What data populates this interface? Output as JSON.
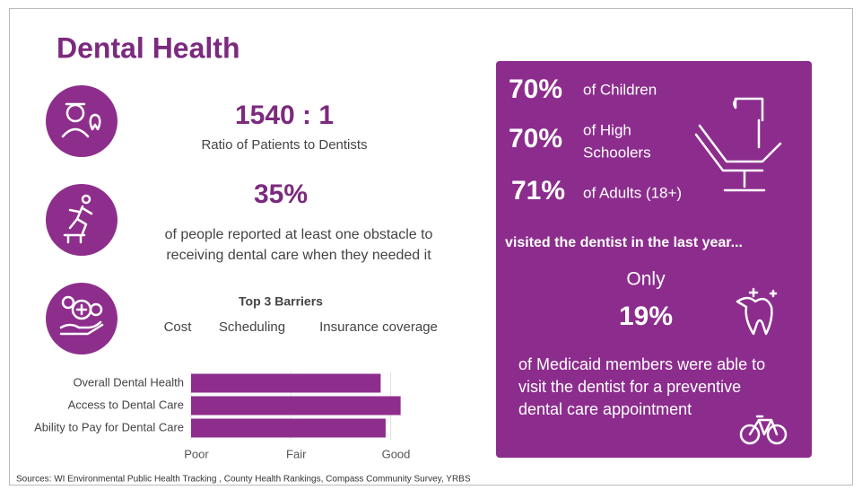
{
  "header": {
    "title": "Dental Health"
  },
  "ratio": {
    "value": "1540 : 1",
    "label": "Ratio of Patients to Dentists"
  },
  "obstacle": {
    "value": "35%",
    "lines": [
      "of people reported at least one obstacle to",
      "receiving dental care when they needed it"
    ]
  },
  "barriers": {
    "title": "Top 3 Barriers",
    "items": [
      "Cost",
      "Scheduling",
      "Insurance coverage"
    ]
  },
  "panel": {
    "visits": [
      {
        "value": "70%",
        "lines": [
          "of Children"
        ]
      },
      {
        "value": "70%",
        "lines": [
          "of High",
          "Schoolers"
        ]
      },
      {
        "value": "71%",
        "lines": [
          "of Adults (18+)"
        ]
      }
    ],
    "visited": "visited the dentist in the last year...",
    "only": "Only",
    "medicaid_value": "19%",
    "medicaid_lines": [
      "of Medicaid members were able to",
      "visit the dentist for a preventive",
      "dental care appointment"
    ]
  },
  "chart_data": {
    "type": "hbar",
    "categories": [
      "Overall Dental Health",
      "Access to Dental Care",
      "Ability to Pay for Dental Care"
    ],
    "values": [
      2.9,
      3.1,
      2.95
    ],
    "color": "#8e2e8c",
    "xlim": [
      1,
      3.4
    ],
    "xticks": [
      {
        "value": 1,
        "label": "Poor"
      },
      {
        "value": 2,
        "label": "Fair"
      },
      {
        "value": 3,
        "label": "Good"
      }
    ],
    "grid": true
  },
  "sources": "Sources: WI Environmental Public Health Tracking , County Health Rankings, Compass Community Survey, YRBS"
}
